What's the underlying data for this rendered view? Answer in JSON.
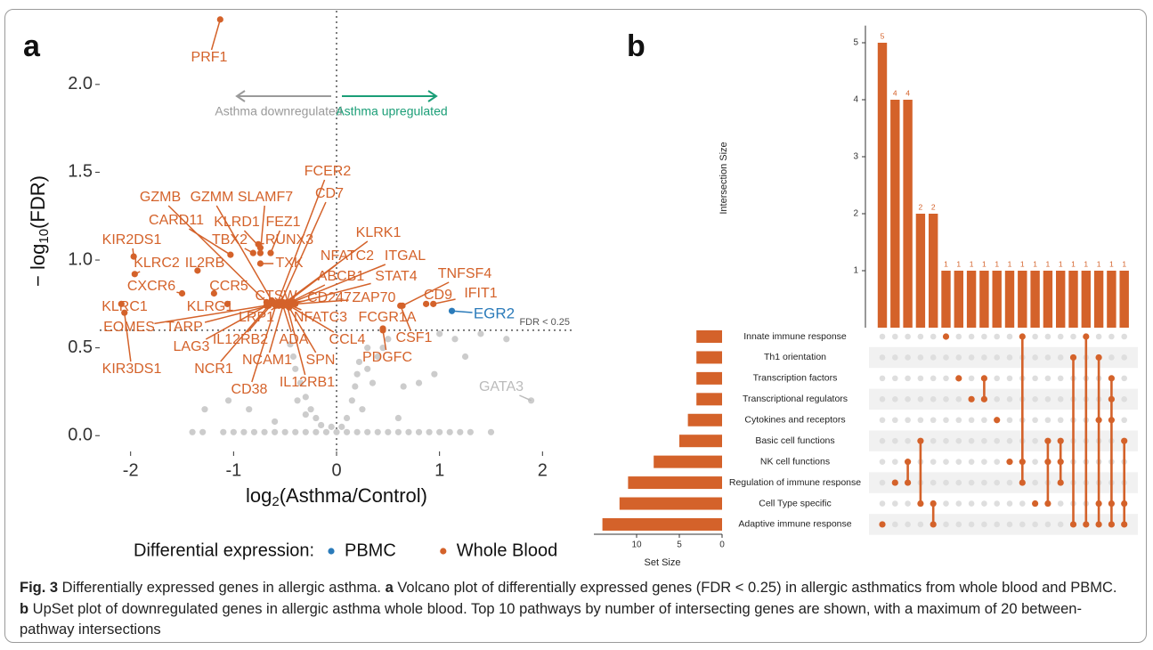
{
  "chart_data": [
    {
      "type": "scatter",
      "panel": "a",
      "xlabel": {
        "base": "log",
        "sub": "2",
        "rest": "(Asthma/Control)"
      },
      "ylabel": {
        "base": "− log",
        "sub": "10",
        "rest": "(FDR)"
      },
      "xlim": [
        -2.3,
        2.3
      ],
      "xticks": [
        -2,
        -1,
        0,
        1,
        2
      ],
      "ylim": [
        -0.09,
        2.42
      ],
      "yticks": [
        {
          "value": 0,
          "label": "0.0"
        },
        0.5,
        {
          "value": 1,
          "label": "1.0"
        },
        1.5,
        {
          "value": 2,
          "label": "2.0"
        }
      ],
      "vline": 0,
      "threshold": {
        "y": 0.6,
        "label": "FDR < 0.25"
      },
      "annotations": [
        {
          "text": "Asthma downregulated",
          "color": "#9a9a9a"
        },
        {
          "text": "Asthma upregulated",
          "color": "#1b9e77"
        }
      ],
      "legend_title": "Differential expression:",
      "legend": "bottom",
      "series": [
        {
          "name": "PBMC",
          "color": "#2b7bba",
          "x": [
            1.12
          ],
          "values": [
            0.71
          ],
          "labels": [
            "EGR2"
          ]
        },
        {
          "name": "Whole Blood",
          "color": "#d4622a",
          "labels": [
            "PRF1",
            "GZMB",
            "GZMM",
            "SLAMF7",
            "FCER2",
            "CARD11",
            "KLRD1",
            "FEZ1",
            "CD7",
            "TBX2",
            "RUNX3",
            "KLRK1",
            "KIR2DS1",
            "KLRC2",
            "IL2RB",
            "TXK",
            "NFATC2",
            "ITGAL",
            "CXCR6",
            "CCR5",
            "ABCB1",
            "STAT4",
            "TNFSF4",
            "CTSW",
            "CD247",
            "ZAP70",
            "CD9",
            "IFIT1",
            "KLRC1",
            "KLRG1",
            "EOMES",
            "TARP",
            "LRP1",
            "NFATC3",
            "FCGR1A",
            "LAG3",
            "IL12RB2",
            "ADA",
            "CCL4",
            "CSF1",
            "KIR3DS1",
            "NCR1",
            "NCAM1",
            "SPN",
            "PDGFC",
            "CD38",
            "IL12RB1"
          ],
          "x": [
            -1.13,
            -0.68,
            -0.63,
            -0.74,
            -0.57,
            -1.03,
            -0.74,
            -0.64,
            -0.54,
            -0.81,
            -0.76,
            -0.52,
            -1.97,
            -1.96,
            -1.35,
            -0.74,
            -0.48,
            -0.47,
            -1.5,
            -1.19,
            -0.45,
            -0.43,
            0.64,
            -0.61,
            -0.42,
            -0.4,
            0.87,
            0.94,
            -2.09,
            -1.06,
            -0.59,
            -0.52,
            -0.56,
            -0.48,
            0.45,
            -0.68,
            -0.61,
            -0.52,
            -0.46,
            0.62,
            -2.06,
            -0.66,
            -0.52,
            -0.46,
            0.45,
            -0.59,
            -0.48
          ],
          "values": [
            2.37,
            0.76,
            0.77,
            1.04,
            0.76,
            1.03,
            1.07,
            1.04,
            0.76,
            1.04,
            1.09,
            0.75,
            1.02,
            0.92,
            0.94,
            0.98,
            0.76,
            0.75,
            0.81,
            0.81,
            0.76,
            0.75,
            0.74,
            0.75,
            0.76,
            0.75,
            0.75,
            0.75,
            0.75,
            0.75,
            0.75,
            0.76,
            0.74,
            0.75,
            0.61,
            0.74,
            0.76,
            0.74,
            0.74,
            0.74,
            0.7,
            0.74,
            0.74,
            0.73,
            0.6,
            0.74,
            0.74
          ]
        },
        {
          "color": "#cccccc",
          "x": [
            1.89
          ],
          "values": [
            0.2
          ],
          "labels": [
            "GATA3"
          ]
        },
        {
          "color": "#cccccc",
          "x": [
            -0.9,
            -0.7,
            -0.5,
            -0.3,
            -0.1,
            0.1,
            0.3,
            0.5,
            0.7,
            0.9,
            1.1,
            1.3,
            -1.4,
            -1.3,
            1.5,
            -0.2,
            -0.25,
            -0.3,
            -0.35,
            -0.4,
            -0.42,
            -0.45,
            -0.15,
            -0.3,
            -0.38,
            0.1,
            0.15,
            0.18,
            0.2,
            0.22,
            0.3,
            0.35,
            0.25,
            0.4,
            0.45,
            0.5,
            0.3,
            -1.28,
            -1.05,
            -0.85,
            0.65,
            0.8,
            0.95,
            1.15,
            1.25,
            1.4,
            1.65,
            -0.05,
            0.05,
            -0.6,
            0.6,
            1.0,
            -0.8,
            -0.6,
            -0.4,
            -0.2,
            0,
            0.2,
            0.4,
            0.6,
            0.8,
            1.0,
            1.2,
            -1.0,
            -1.1
          ],
          "values": [
            0.02,
            0.02,
            0.02,
            0.02,
            0.02,
            0.02,
            0.02,
            0.02,
            0.02,
            0.02,
            0.02,
            0.02,
            0.02,
            0.02,
            0.02,
            0.1,
            0.15,
            0.22,
            0.3,
            0.38,
            0.45,
            0.52,
            0.06,
            0.12,
            0.2,
            0.1,
            0.2,
            0.28,
            0.35,
            0.42,
            0.38,
            0.3,
            0.15,
            0.45,
            0.5,
            0.55,
            0.5,
            0.15,
            0.2,
            0.15,
            0.28,
            0.3,
            0.35,
            0.55,
            0.45,
            0.58,
            0.55,
            0.05,
            0.05,
            0.08,
            0.1,
            0.58,
            0.02,
            0.02,
            0.02,
            0.02,
            0.02,
            0.02,
            0.02,
            0.02,
            0.02,
            0.02,
            0.02,
            0.02,
            0.02
          ]
        }
      ]
    },
    {
      "type": "upset",
      "panel": "b",
      "color": "#d4622a",
      "ylabel": "Intersection Size",
      "xlabel": "Set Size",
      "sets": [
        "Innate immune response",
        "Th1 orientation",
        "Transcription factors",
        "Transcriptional regulators",
        "Cytokines and receptors",
        "Basic cell functions",
        "NK cell functions",
        "Regulation of immune response",
        "Cell Type specific",
        "Adaptive immune response"
      ],
      "set_sizes": [
        3,
        3,
        3,
        3,
        4,
        5,
        8,
        11,
        12,
        14
      ],
      "xlim": [
        15,
        0
      ],
      "xticks": [
        10,
        5,
        0
      ],
      "values": [
        5,
        4,
        4,
        2,
        2,
        1,
        1,
        1,
        1,
        1,
        1,
        1,
        1,
        1,
        1,
        1,
        1,
        1,
        1,
        1
      ],
      "ylim": [
        0,
        5.3
      ],
      "yticks": [
        1,
        2,
        3,
        4,
        5
      ],
      "members": [
        [
          "Adaptive immune response"
        ],
        [
          "Regulation of immune response"
        ],
        [
          "NK cell functions",
          "Regulation of immune response"
        ],
        [
          "Basic cell functions",
          "Cell Type specific"
        ],
        [
          "Cell Type specific",
          "Adaptive immune response"
        ],
        [
          "Innate immune response"
        ],
        [
          "Transcription factors"
        ],
        [
          "Transcriptional regulators"
        ],
        [
          "Transcription factors",
          "Transcriptional regulators"
        ],
        [
          "Cytokines and receptors"
        ],
        [
          "NK cell functions"
        ],
        [
          "Innate immune response",
          "NK cell functions",
          "Regulation of immune response"
        ],
        [
          "Cell Type specific"
        ],
        [
          "Basic cell functions",
          "NK cell functions",
          "Cell Type specific"
        ],
        [
          "Basic cell functions",
          "NK cell functions",
          "Regulation of immune response"
        ],
        [
          "Th1 orientation",
          "Adaptive immune response"
        ],
        [
          "Innate immune response",
          "Adaptive immune response"
        ],
        [
          "Th1 orientation",
          "Cytokines and receptors",
          "Cell Type specific",
          "Adaptive immune response"
        ],
        [
          "Transcription factors",
          "Transcriptional regulators",
          "Cytokines and receptors",
          "Cell Type specific",
          "Adaptive immune response"
        ],
        [
          "Basic cell functions",
          "Cell Type specific",
          "Adaptive immune response"
        ]
      ]
    }
  ],
  "caption": {
    "label": "Fig. 3",
    "parts": [
      " Differentially expressed genes in allergic asthma. ",
      "a",
      " Volcano plot of differentially expressed genes (FDR < 0.25) in allergic asthmatics from whole blood and PBMC. ",
      "b",
      " UpSet plot of downregulated genes in allergic asthma whole blood. Top 10 pathways by number of intersecting genes are shown, with a maximum of 20 between-pathway intersections"
    ]
  }
}
